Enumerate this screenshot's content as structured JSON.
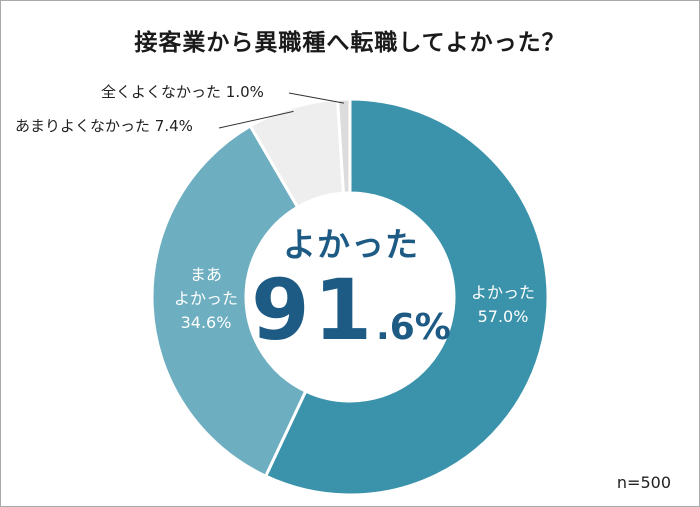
{
  "chart_data": {
    "type": "pie",
    "title": "接客業から異職種へ転職してよかった？",
    "categories": [
      "よかった",
      "まあよかった",
      "あまりよくなかった",
      "全くよくなかった"
    ],
    "values": [
      57.0,
      34.6,
      7.4,
      1.0
    ],
    "unit": "%",
    "colors": [
      "#3a93ab",
      "#6daec0",
      "#eeeeee",
      "#dcdcdc"
    ],
    "donut": true,
    "labels": {
      "good": {
        "name": "よかった",
        "value": "57.0%"
      },
      "fairly_good": {
        "line1": "まあ",
        "line2": "よかった",
        "value": "34.6%"
      },
      "not_very_good": {
        "name": "あまりよくなかった",
        "value": "7.4%"
      },
      "not_good_at_all": {
        "name": "全くよくなかった",
        "value": "1.0%"
      }
    },
    "center": {
      "label": "よかった",
      "big": "91",
      "small": ".6%"
    },
    "sample_size": "n=500"
  }
}
